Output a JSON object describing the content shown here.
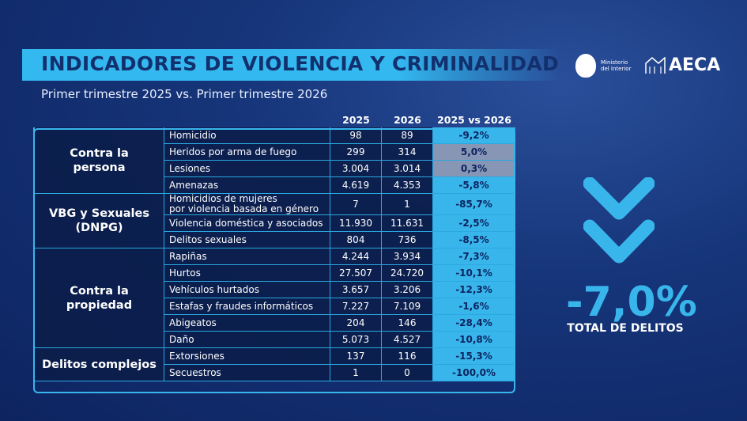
{
  "header": {
    "title": "INDICADORES DE VIOLENCIA Y CRIMINALIDAD",
    "subtitle": "Primer trimestre 2025 vs. Primer trimestre 2026"
  },
  "logos": {
    "ministry": "Ministerio\ndel Interior",
    "aeca": "AECA"
  },
  "table": {
    "columns": [
      "2025",
      "2026",
      "2025 vs 2026"
    ],
    "groups": [
      {
        "name": "Contra la\npersona",
        "rows": [
          [
            "Homicidio",
            "98",
            "89",
            "-9,2%"
          ],
          [
            "Heridos por arma de fuego",
            "299",
            "314",
            "5,0%"
          ],
          [
            "Lesiones",
            "3.004",
            "3.014",
            "0,3%"
          ],
          [
            "Amenazas",
            "4.619",
            "4.353",
            "-5,8%"
          ]
        ]
      },
      {
        "name": "VBG y Sexuales\n(DNPG)",
        "rows": [
          [
            "Homicidios de mujeres\npor violencia basada en género",
            "7",
            "1",
            "-85,7%"
          ],
          [
            "Violencia doméstica y asociados",
            "11.930",
            "11.631",
            "-2,5%"
          ],
          [
            "Delitos sexuales",
            "804",
            "736",
            "-8,5%"
          ]
        ]
      },
      {
        "name": "Contra la\npropiedad",
        "rows": [
          [
            "Rapiñas",
            "4.244",
            "3.934",
            "-7,3%"
          ],
          [
            "Hurtos",
            "27.507",
            "24.720",
            "-10,1%"
          ],
          [
            "Vehículos hurtados",
            "3.657",
            "3.206",
            "-12,3%"
          ],
          [
            "Estafas y fraudes informáticos",
            "7.227",
            "7.109",
            "-1,6%"
          ],
          [
            "Abigeatos",
            "204",
            "146",
            "-28,4%"
          ],
          [
            "Daño",
            "5.073",
            "4.527",
            "-10,8%"
          ]
        ]
      },
      {
        "name": "Delitos complejos",
        "rows": [
          [
            "Extorsiones",
            "137",
            "116",
            "-15,3%"
          ],
          [
            "Secuestros",
            "1",
            "0",
            "-100,0%"
          ]
        ]
      }
    ]
  },
  "summary": {
    "value": "-7,0%",
    "label": "TOTAL DE DELITOS"
  }
}
